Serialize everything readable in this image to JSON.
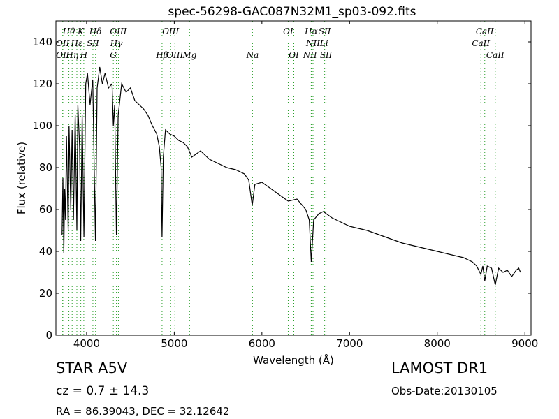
{
  "chart_data": {
    "type": "line",
    "title": "spec-56298-GAC087N32M1_sp03-092.fits",
    "x_label": "Wavelength (Å)",
    "y_label": "Flux (relative)",
    "xlim": [
      3650,
      9070
    ],
    "ylim": [
      0,
      150
    ],
    "xticks": [
      4000,
      5000,
      6000,
      7000,
      8000,
      9000
    ],
    "yticks": [
      0,
      20,
      40,
      60,
      80,
      100,
      120,
      140
    ],
    "grid": false,
    "x": [
      3720,
      3730,
      3740,
      3750,
      3760,
      3770,
      3790,
      3800,
      3820,
      3835,
      3850,
      3870,
      3889,
      3900,
      3920,
      3933,
      3950,
      3970,
      3990,
      4010,
      4040,
      4070,
      4101,
      4120,
      4150,
      4180,
      4210,
      4250,
      4290,
      4305,
      4320,
      4340,
      4360,
      4400,
      4450,
      4500,
      4550,
      4600,
      4650,
      4700,
      4750,
      4800,
      4830,
      4850,
      4861,
      4875,
      4900,
      4950,
      5000,
      5050,
      5100,
      5150,
      5200,
      5300,
      5400,
      5500,
      5600,
      5700,
      5800,
      5850,
      5890,
      5920,
      6000,
      6100,
      6200,
      6300,
      6400,
      6500,
      6540,
      6563,
      6590,
      6650,
      6700,
      6800,
      6900,
      7000,
      7200,
      7400,
      7600,
      7800,
      8000,
      8200,
      8300,
      8400,
      8450,
      8498,
      8520,
      8542,
      8570,
      8620,
      8662,
      8700,
      8750,
      8800,
      8850,
      8900,
      8930,
      8950
    ],
    "series": [
      {
        "color": "#000000",
        "values": [
          48,
          75,
          39,
          70,
          55,
          95,
          50,
          100,
          60,
          98,
          55,
          105,
          50,
          110,
          90,
          45,
          105,
          47,
          120,
          125,
          110,
          122,
          45,
          118,
          128,
          120,
          125,
          118,
          120,
          100,
          110,
          48,
          105,
          120,
          116,
          118,
          112,
          110,
          108,
          105,
          100,
          96,
          90,
          80,
          47,
          85,
          98,
          96,
          95,
          93,
          92,
          90,
          85,
          88,
          84,
          82,
          80,
          79,
          77,
          74,
          62,
          72,
          73,
          70,
          67,
          64,
          65,
          60,
          55,
          35,
          55,
          58,
          59,
          56,
          54,
          52,
          50,
          47,
          44,
          42,
          40,
          38,
          37,
          35,
          33,
          29,
          33,
          26,
          33,
          32,
          24,
          32,
          30,
          31,
          28,
          31,
          32,
          30
        ]
      }
    ],
    "spectral_lines": {
      "color": "#2ca02c",
      "lines": [
        {
          "label": "Hθ",
          "wavelength": 3798,
          "row": 0
        },
        {
          "label": "K",
          "wavelength": 3934,
          "row": 0
        },
        {
          "label": "Hδ",
          "wavelength": 4102,
          "row": 0
        },
        {
          "label": "OIII",
          "wavelength": 4363,
          "row": 0
        },
        {
          "label": "OIII",
          "wavelength": 4959,
          "row": 0
        },
        {
          "label": "OI",
          "wavelength": 6300,
          "row": 0
        },
        {
          "label": "Hα",
          "wavelength": 6563,
          "row": 0
        },
        {
          "label": "SII",
          "wavelength": 6716,
          "row": 0
        },
        {
          "label": "CaII",
          "wavelength": 8542,
          "row": 0
        },
        {
          "label": "OII",
          "wavelength": 3727,
          "row": 1
        },
        {
          "label": "Hε",
          "wavelength": 3889,
          "row": 1
        },
        {
          "label": "SII",
          "wavelength": 4072,
          "row": 1
        },
        {
          "label": "Hγ",
          "wavelength": 4340,
          "row": 1
        },
        {
          "label": "NII",
          "wavelength": 6583,
          "row": 1
        },
        {
          "label": "Li",
          "wavelength": 6708,
          "row": 1
        },
        {
          "label": "CaII",
          "wavelength": 8498,
          "row": 1
        },
        {
          "label": "OII",
          "wavelength": 3729,
          "row": 2
        },
        {
          "label": "Hη",
          "wavelength": 3835,
          "row": 2
        },
        {
          "label": "H",
          "wavelength": 3968,
          "row": 2
        },
        {
          "label": "G",
          "wavelength": 4305,
          "row": 2
        },
        {
          "label": "Hβ",
          "wavelength": 4861,
          "row": 2
        },
        {
          "label": "OIII",
          "wavelength": 5007,
          "row": 2
        },
        {
          "label": "Mg",
          "wavelength": 5175,
          "row": 2
        },
        {
          "label": "Na",
          "wavelength": 5893,
          "row": 2
        },
        {
          "label": "OI",
          "wavelength": 6364,
          "row": 2
        },
        {
          "label": "NII",
          "wavelength": 6548,
          "row": 2
        },
        {
          "label": "SII",
          "wavelength": 6731,
          "row": 2
        },
        {
          "label": "CaII",
          "wavelength": 8662,
          "row": 2
        }
      ]
    },
    "info": {
      "object": "STAR   A5V",
      "redshift": "cz = 0.7 ± 14.3",
      "coords": "RA = 86.39043, DEC = 32.12642",
      "survey": "LAMOST DR1",
      "obs_date": "Obs-Date:20130105"
    }
  }
}
